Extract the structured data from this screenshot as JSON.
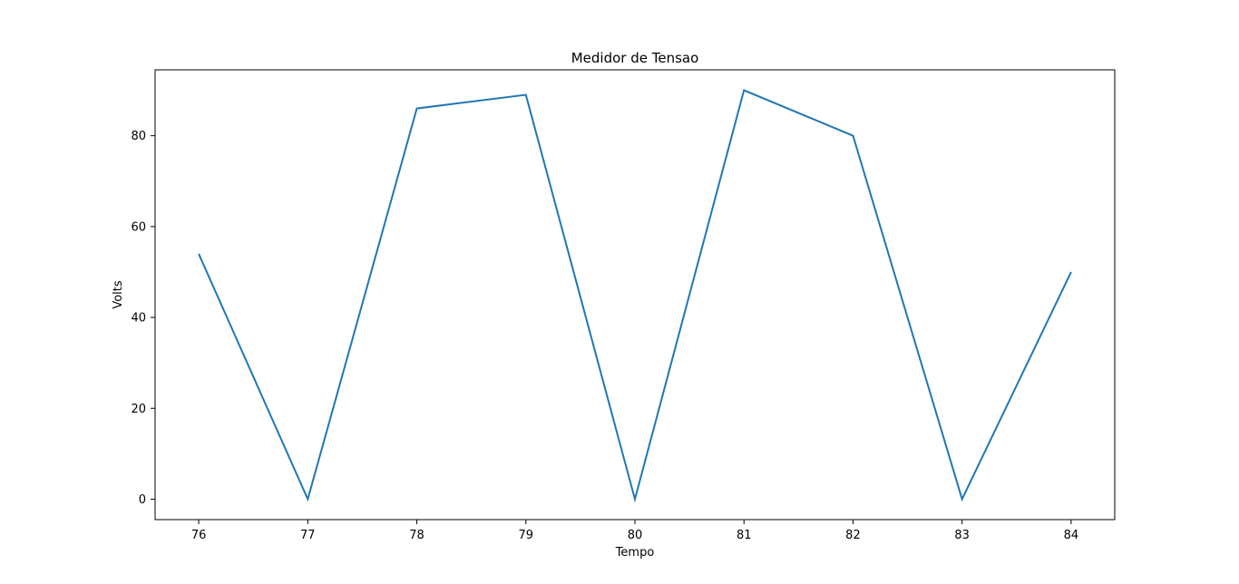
{
  "chart_data": {
    "type": "line",
    "title": "Medidor de Tensao",
    "xlabel": "Tempo",
    "ylabel": "Volts",
    "x": [
      76,
      77,
      78,
      79,
      80,
      81,
      82,
      83,
      84
    ],
    "series": [
      {
        "values": [
          54,
          0,
          86,
          89,
          0,
          90,
          80,
          0,
          50
        ],
        "color": "#1f77b4"
      }
    ],
    "xticks": [
      76,
      77,
      78,
      79,
      80,
      81,
      82,
      83,
      84
    ],
    "yticks": [
      0,
      20,
      40,
      60,
      80
    ],
    "xlim": [
      75.6,
      84.4
    ],
    "ylim": [
      -4.5,
      94.5
    ],
    "grid": false,
    "legend": "none"
  }
}
